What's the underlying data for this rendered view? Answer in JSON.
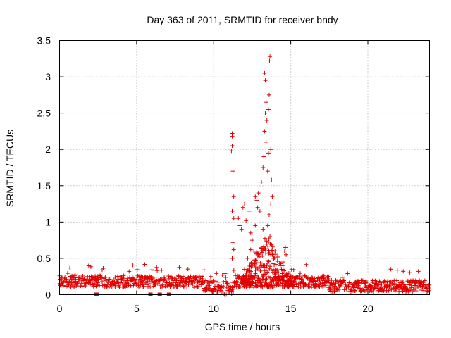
{
  "chart_data": {
    "type": "scatter",
    "title": "Day 363 of 2011, SRMTID for receiver bndy",
    "xlabel": "GPS time / hours",
    "ylabel": "SRMTID / TECUs",
    "xlim": [
      0,
      24
    ],
    "ylim": [
      0,
      3.5
    ],
    "x_ticks": [
      0,
      5,
      10,
      15,
      20
    ],
    "y_ticks": [
      0,
      0.5,
      1,
      1.5,
      2,
      2.5,
      3,
      3.5
    ],
    "x_tick_labels": [
      "0",
      "5",
      "10",
      "15",
      "20"
    ],
    "y_tick_labels": [
      "0",
      "0.5",
      "1",
      "1.5",
      "2",
      "2.5",
      "3",
      "3.5"
    ],
    "grid": true,
    "marker": "plus",
    "series_color": "#e00000",
    "baseline_level": 0.18,
    "peak": {
      "x": 13.5,
      "y": 3.28
    },
    "series": [
      {
        "name": "SRMTID",
        "points": [
          [
            11.2,
            2.22
          ],
          [
            11.2,
            2.18
          ],
          [
            11.2,
            2.05
          ],
          [
            11.15,
            1.98
          ],
          [
            11.25,
            1.7
          ],
          [
            11.3,
            1.35
          ],
          [
            11.2,
            1.15
          ],
          [
            11.3,
            1.05
          ],
          [
            11.25,
            0.72
          ],
          [
            11.3,
            0.62
          ],
          [
            11.2,
            0.5
          ],
          [
            11.6,
            1.05
          ],
          [
            11.7,
            0.95
          ],
          [
            11.8,
            0.9
          ],
          [
            11.9,
            1.2
          ],
          [
            12.0,
            1.25
          ],
          [
            12.1,
            1.02
          ],
          [
            12.3,
            1.15
          ],
          [
            12.4,
            0.85
          ],
          [
            12.5,
            0.75
          ],
          [
            12.6,
            0.6
          ],
          [
            12.7,
            0.95
          ],
          [
            12.8,
            1.3
          ],
          [
            12.9,
            1.4
          ],
          [
            12.7,
            1.35
          ],
          [
            12.85,
            1.2
          ],
          [
            13.0,
            1.15
          ],
          [
            13.1,
            1.55
          ],
          [
            13.2,
            1.75
          ],
          [
            13.25,
            1.9
          ],
          [
            13.3,
            2.25
          ],
          [
            13.35,
            2.5
          ],
          [
            13.4,
            2.65
          ],
          [
            13.3,
            3.05
          ],
          [
            13.35,
            2.95
          ],
          [
            13.45,
            2.4
          ],
          [
            13.4,
            2.1
          ],
          [
            13.5,
            1.7
          ],
          [
            13.55,
            2.55
          ],
          [
            13.6,
            2.75
          ],
          [
            13.62,
            3.22
          ],
          [
            13.65,
            3.28
          ],
          [
            13.55,
            1.95
          ],
          [
            13.7,
            2.0
          ],
          [
            13.75,
            1.58
          ],
          [
            13.8,
            1.35
          ],
          [
            13.7,
            1.25
          ],
          [
            13.6,
            1.1
          ],
          [
            13.5,
            0.95
          ],
          [
            13.65,
            0.8
          ],
          [
            13.8,
            0.55
          ],
          [
            13.9,
            0.5
          ],
          [
            13.95,
            0.3
          ],
          [
            14.0,
            0.25
          ],
          [
            13.3,
            0.4
          ],
          [
            13.2,
            0.9
          ],
          [
            12.9,
            0.55
          ],
          [
            12.5,
            0.4
          ],
          [
            12.3,
            0.3
          ],
          [
            12.1,
            0.2
          ],
          [
            12.0,
            0.35
          ],
          [
            11.9,
            0.25
          ],
          [
            12.2,
            0.5
          ],
          [
            12.4,
            0.62
          ],
          [
            14.2,
            0.3
          ],
          [
            14.4,
            0.35
          ],
          [
            14.5,
            0.45
          ],
          [
            14.6,
            0.6
          ],
          [
            14.65,
            0.65
          ],
          [
            14.7,
            0.55
          ],
          [
            14.5,
            0.4
          ],
          [
            14.8,
            0.25
          ],
          [
            14.3,
            0.2
          ],
          [
            14.1,
            0.15
          ]
        ]
      }
    ],
    "squares": [
      [
        2.4,
        0.0
      ],
      [
        5.9,
        0.0
      ],
      [
        6.5,
        0.0
      ],
      [
        7.1,
        0.0
      ]
    ]
  }
}
